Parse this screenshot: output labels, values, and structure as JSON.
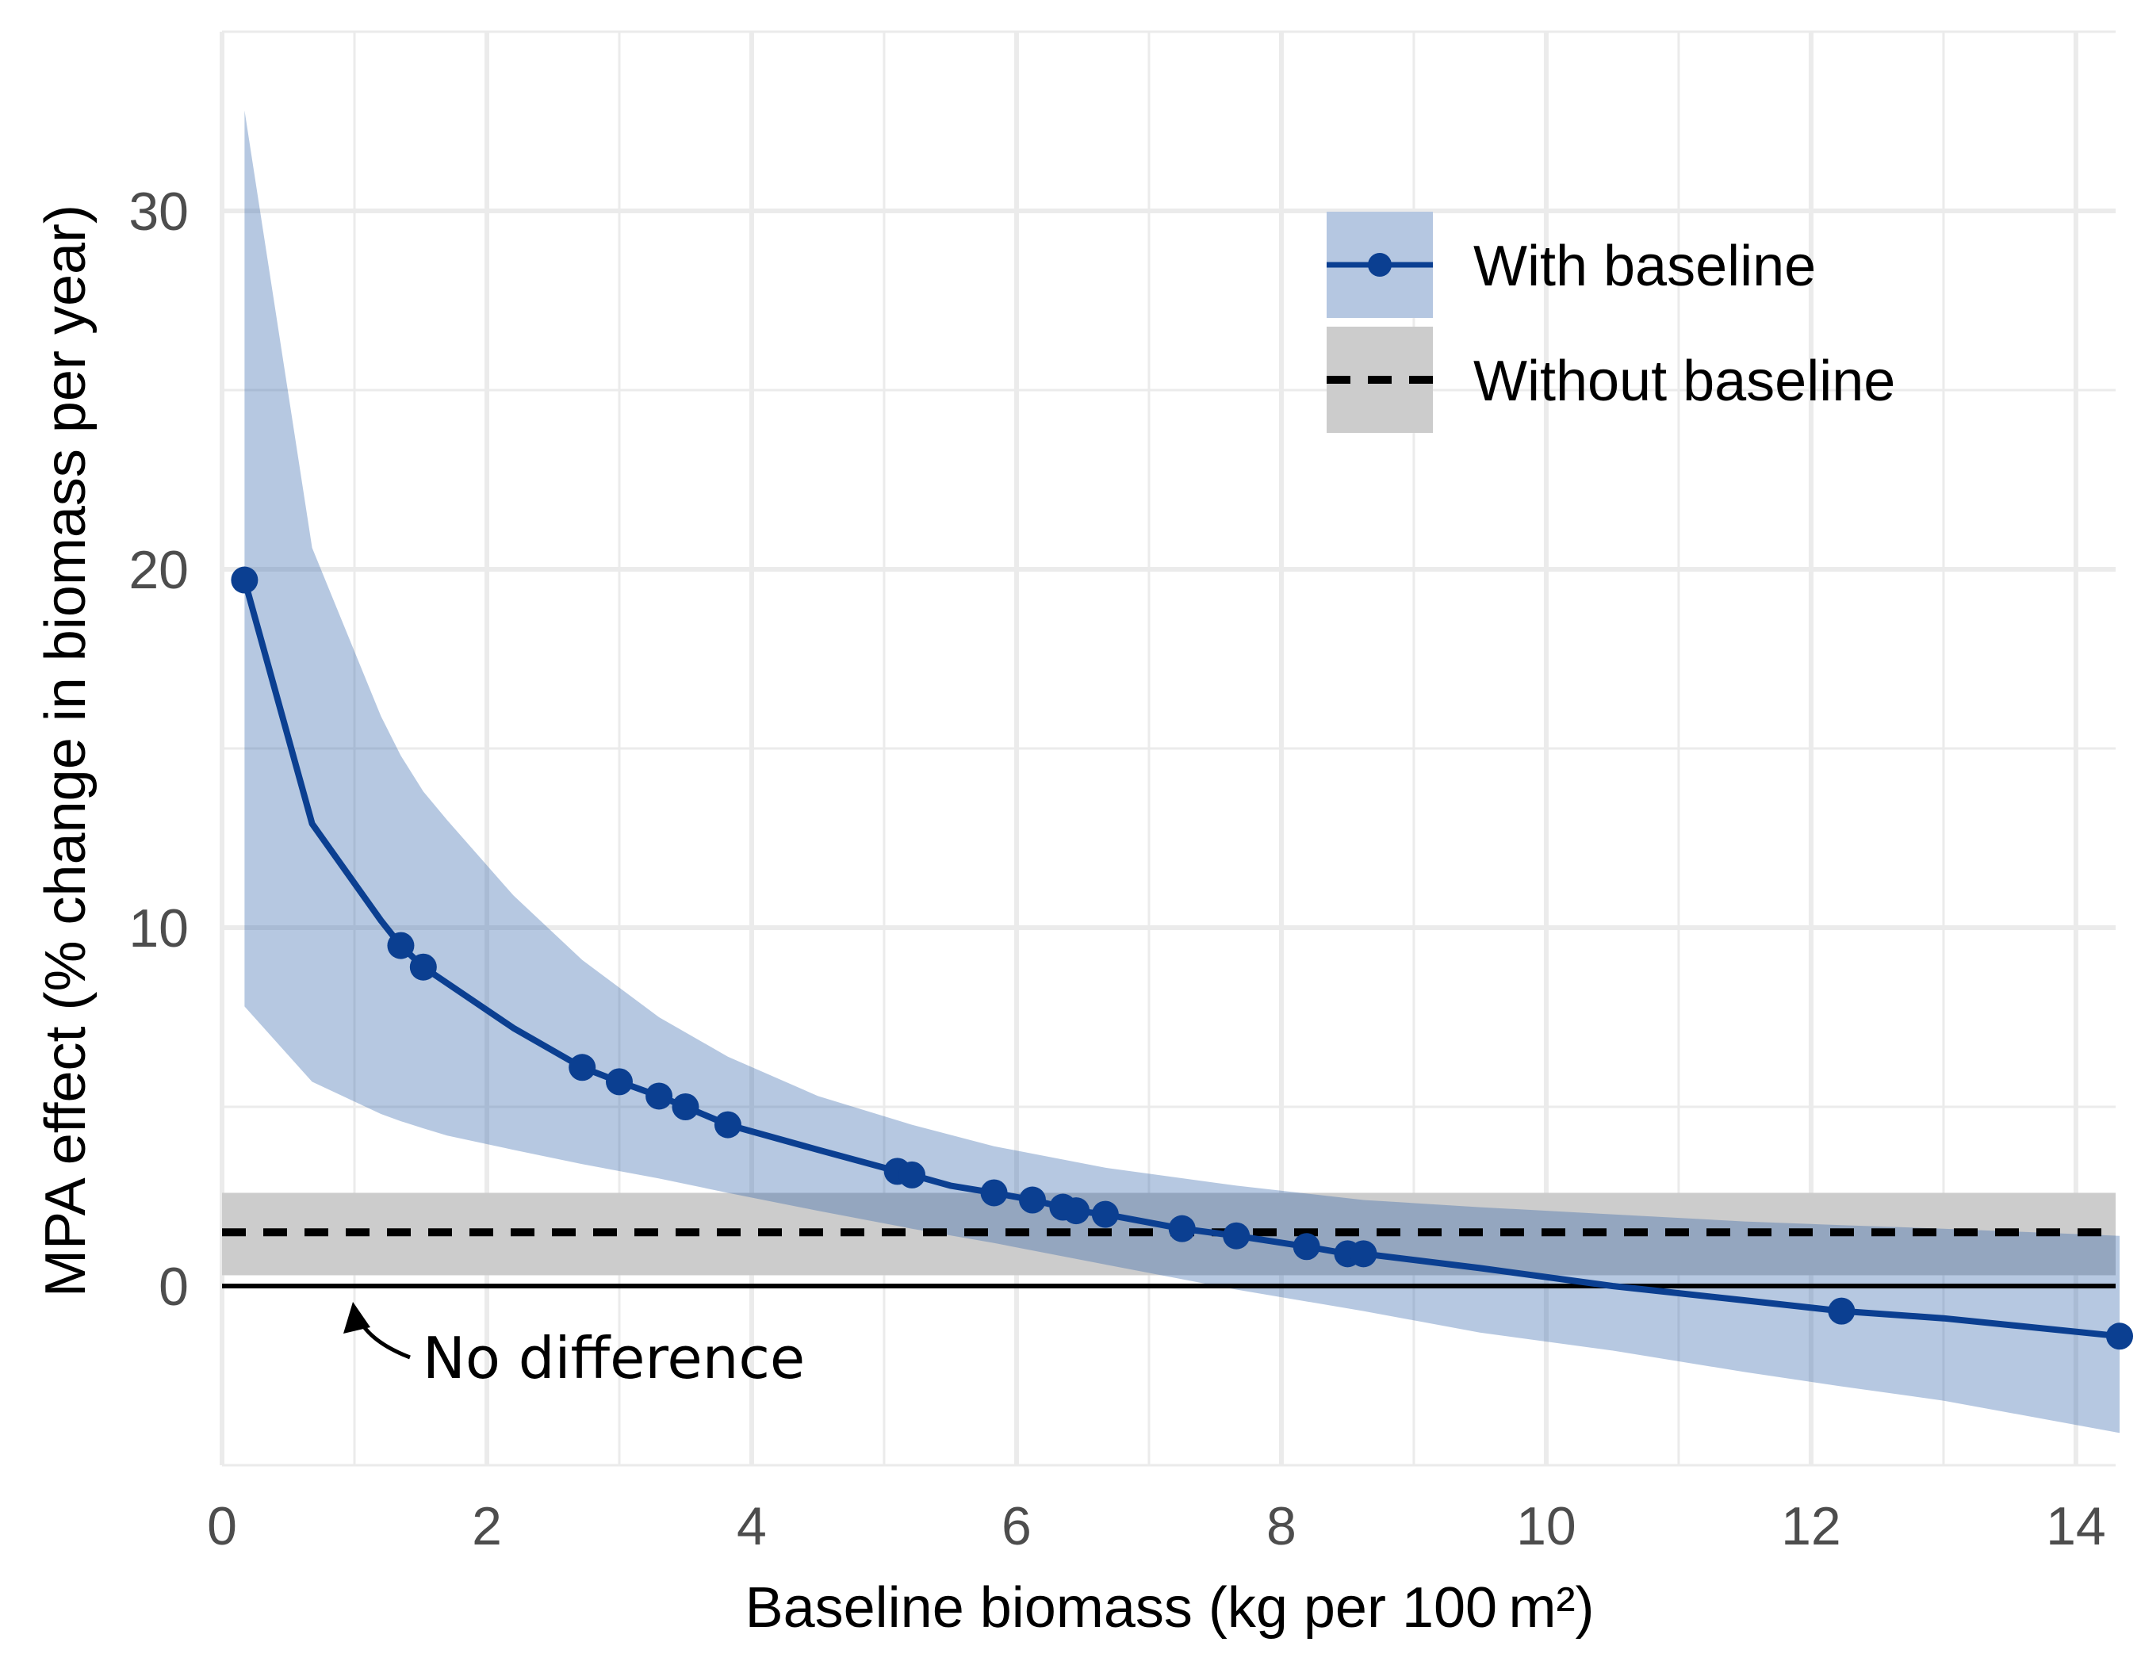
{
  "chart_data": {
    "type": "line",
    "title": "",
    "xlabel": "Baseline biomass (kg per 100 m²)",
    "ylabel": "MPA effect (% change in biomass per year)",
    "xlim": [
      0,
      14.3
    ],
    "ylim": [
      -5,
      35
    ],
    "x_ticks": [
      0,
      2,
      4,
      6,
      8,
      10,
      12,
      14
    ],
    "y_ticks": [
      0,
      10,
      20,
      30
    ],
    "grid": true,
    "legend_position": "top-right",
    "colors": {
      "series": "#0b3f91",
      "ribbon": "#b5c7e1",
      "reference_band": "#cccccc",
      "reference_line": "#000000",
      "grid": "#ebebeb"
    },
    "series": [
      {
        "name": "With baseline",
        "style": "solid line with points and confidence ribbon",
        "line_x": [
          0.17,
          0.68,
          1.2,
          1.35,
          1.52,
          2.2,
          2.72,
          3.0,
          3.3,
          3.5,
          3.82,
          4.5,
          5.1,
          5.21,
          5.5,
          5.83,
          6.12,
          6.35,
          6.45,
          6.67,
          7.25,
          7.66,
          8.19,
          8.5,
          8.62,
          9.5,
          10.5,
          11.5,
          12.23,
          13.0,
          14.33
        ],
        "line_y": [
          19.7,
          12.9,
          10.2,
          9.5,
          8.9,
          7.2,
          6.1,
          5.7,
          5.3,
          5.0,
          4.5,
          3.8,
          3.2,
          3.1,
          2.8,
          2.6,
          2.4,
          2.2,
          2.1,
          2.0,
          1.6,
          1.4,
          1.1,
          0.9,
          0.9,
          0.5,
          0.0,
          -0.4,
          -0.7,
          -0.9,
          -1.4
        ],
        "points_x": [
          0.17,
          1.35,
          1.52,
          2.72,
          3.0,
          3.3,
          3.5,
          3.82,
          5.1,
          5.21,
          5.83,
          6.12,
          6.35,
          6.45,
          6.67,
          7.25,
          7.66,
          8.19,
          8.5,
          8.62,
          12.23,
          14.33
        ],
        "points_y": [
          19.7,
          9.5,
          8.9,
          6.1,
          5.7,
          5.3,
          5.0,
          4.5,
          3.2,
          3.1,
          2.6,
          2.4,
          2.2,
          2.1,
          2.0,
          1.6,
          1.4,
          1.1,
          0.9,
          0.9,
          -0.7,
          -1.4
        ],
        "ribbon_x": [
          0.17,
          0.68,
          1.2,
          1.35,
          1.52,
          1.7,
          2.2,
          2.72,
          3.3,
          3.82,
          4.5,
          5.21,
          5.83,
          6.67,
          7.66,
          8.62,
          9.5,
          10.5,
          11.5,
          12.23,
          13.0,
          14.33
        ],
        "ribbon_upper": [
          32.8,
          20.6,
          15.9,
          14.8,
          13.8,
          13.0,
          10.9,
          9.1,
          7.5,
          6.4,
          5.3,
          4.5,
          3.9,
          3.3,
          2.8,
          2.4,
          2.2,
          2.0,
          1.8,
          1.7,
          1.6,
          1.4
        ],
        "ribbon_lower": [
          7.8,
          5.7,
          4.8,
          4.6,
          4.4,
          4.2,
          3.8,
          3.4,
          3.0,
          2.6,
          2.1,
          1.6,
          1.2,
          0.6,
          -0.1,
          -0.7,
          -1.3,
          -1.8,
          -2.4,
          -2.8,
          -3.2,
          -4.1
        ]
      },
      {
        "name": "Without baseline",
        "style": "dashed horizontal line with confidence band",
        "value": 1.5,
        "band_lower": 0.3,
        "band_upper": 2.6
      }
    ],
    "reference_line": {
      "value": 0
    },
    "annotations": [
      {
        "text": "No difference",
        "arrow_to_x": 1.0,
        "arrow_to_y": 0
      }
    ]
  }
}
